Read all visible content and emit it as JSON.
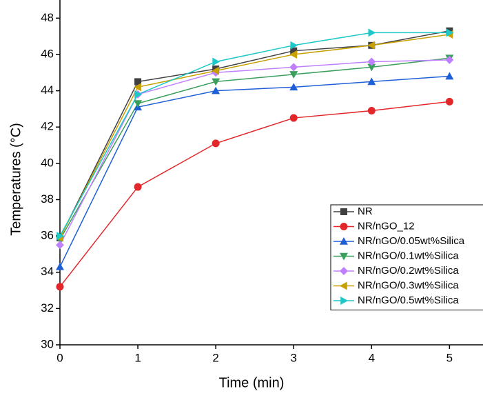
{
  "chart_data": {
    "type": "line",
    "x_label": "Time (min)",
    "y_label": "Temperatures (°C)",
    "x": [
      0,
      1,
      2,
      3,
      4,
      5
    ],
    "xlim": [
      0,
      5.43
    ],
    "xticks": [
      0,
      1,
      2,
      3,
      4,
      5
    ],
    "ylim": [
      30,
      49
    ],
    "yticks": [
      30,
      32,
      34,
      36,
      38,
      40,
      42,
      44,
      46,
      48
    ],
    "grid": false,
    "legend_position": "lower right",
    "series": [
      {
        "name": "NR",
        "color": "#404040",
        "marker": "square",
        "values": [
          35.9,
          44.5,
          45.2,
          46.2,
          46.5,
          47.3
        ]
      },
      {
        "name": "NR/nGO_12",
        "color": "#e3262a",
        "marker": "circle",
        "values": [
          33.2,
          38.7,
          41.1,
          42.5,
          42.9,
          43.4
        ]
      },
      {
        "name": "NR/nGO/0.05wt%Silica",
        "color": "#1f5fd6",
        "marker": "triangle-up",
        "values": [
          34.3,
          43.1,
          44.0,
          44.2,
          44.5,
          44.8
        ]
      },
      {
        "name": "NR/nGO/0.1wt%Silica",
        "color": "#3a9e5c",
        "marker": "triangle-down",
        "values": [
          35.8,
          43.3,
          44.5,
          44.9,
          45.3,
          45.8
        ]
      },
      {
        "name": "NR/nGO/0.2wt%Silica",
        "color": "#bf80ff",
        "marker": "diamond",
        "values": [
          35.5,
          43.8,
          45.0,
          45.3,
          45.6,
          45.7
        ]
      },
      {
        "name": "NR/nGO/0.3wt%Silica",
        "color": "#c8a000",
        "marker": "triangle-left",
        "values": [
          35.9,
          44.2,
          45.1,
          46.0,
          46.5,
          47.1
        ]
      },
      {
        "name": "NR/nGO/0.5wt%Silica",
        "color": "#1ec8c8",
        "marker": "triangle-right",
        "values": [
          36.0,
          43.8,
          45.6,
          46.5,
          47.2,
          47.2
        ]
      }
    ]
  }
}
